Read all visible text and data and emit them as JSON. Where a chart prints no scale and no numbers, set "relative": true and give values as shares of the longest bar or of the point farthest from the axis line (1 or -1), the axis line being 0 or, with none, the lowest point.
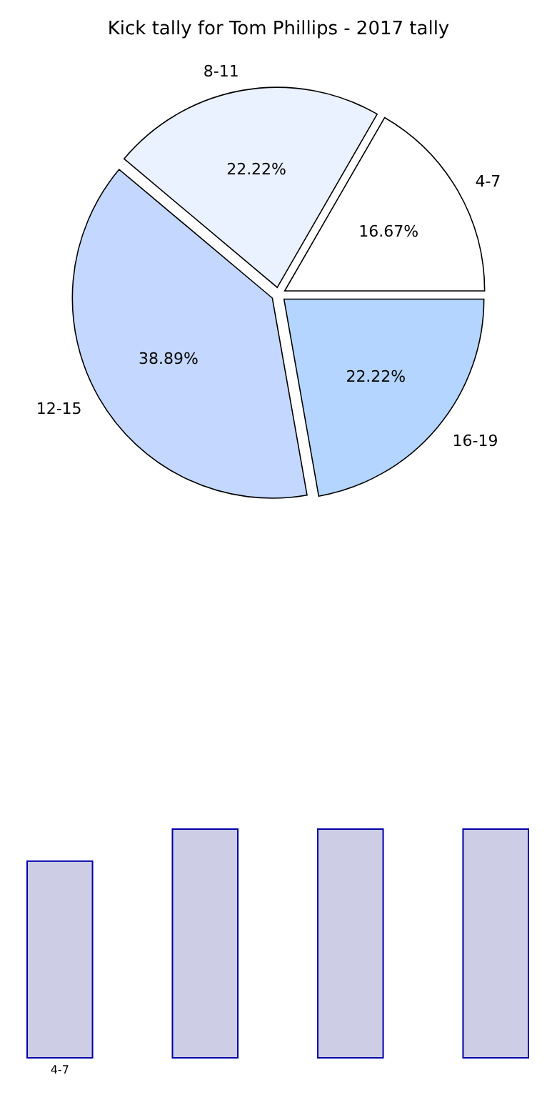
{
  "chart_data": [
    {
      "type": "pie",
      "title": "Kick tally for Tom Phillips - 2017 tally",
      "categories": [
        "4-7",
        "8-11",
        "12-15",
        "16-19"
      ],
      "values": [
        16.67,
        22.22,
        38.89,
        22.22
      ],
      "value_labels": [
        "16.67%",
        "22.22%",
        "38.89%",
        "22.22%"
      ],
      "colors": [
        "#ffffff",
        "#eaf1ff",
        "#c4d8ff",
        "#b4d5ff"
      ]
    },
    {
      "type": "bar",
      "relative": true,
      "categories": [
        "4-7",
        null,
        null,
        null
      ],
      "values": [
        0.86,
        1,
        1,
        1
      ],
      "color": "#cdcde6"
    }
  ]
}
